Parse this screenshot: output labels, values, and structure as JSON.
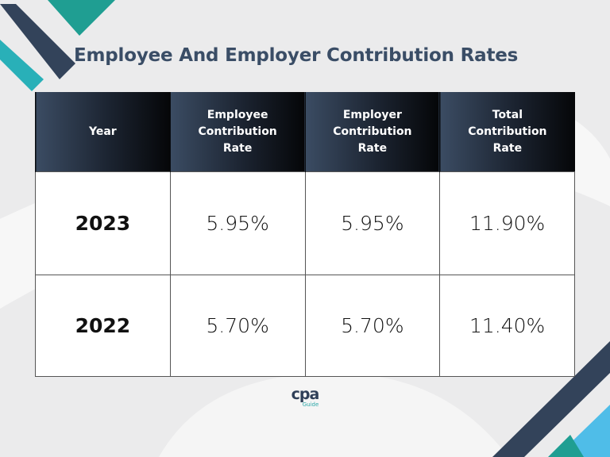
{
  "header": {
    "title": "Employee And Employer Contribution Rates"
  },
  "table": {
    "columns": [
      "Year",
      "Employee Contribution Rate",
      "Employer Contribution Rate",
      "Total Contribution Rate"
    ],
    "rows": [
      [
        "2023",
        "5.95%",
        "5.95%",
        "11.90%"
      ],
      [
        "2022",
        "5.70%",
        "5.70%",
        "11.40%"
      ]
    ]
  },
  "logo": {
    "brand": "cpa",
    "sub": "Guide"
  }
}
